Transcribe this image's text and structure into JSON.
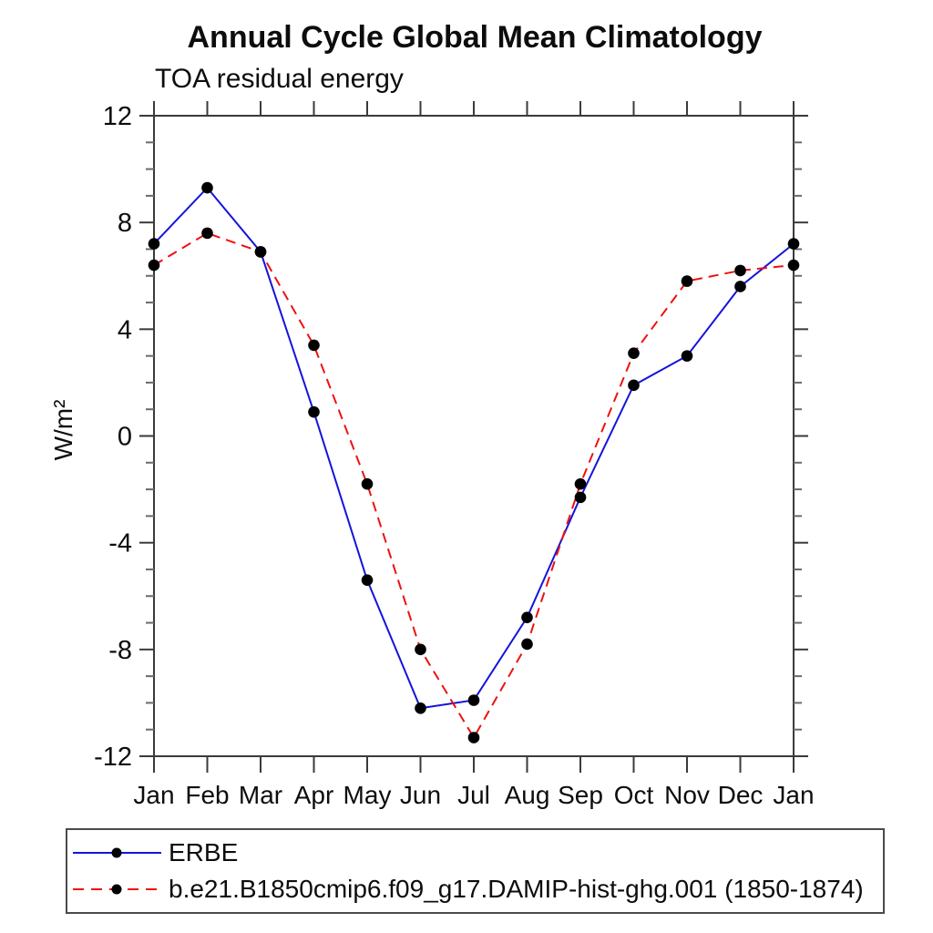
{
  "chart_data": {
    "type": "line",
    "title": "Annual Cycle Global Mean Climatology",
    "subtitle": "TOA residual energy",
    "xlabel": "",
    "ylabel": "W/m²",
    "categories": [
      "Jan",
      "Feb",
      "Mar",
      "Apr",
      "May",
      "Jun",
      "Jul",
      "Aug",
      "Sep",
      "Oct",
      "Nov",
      "Dec",
      "Jan"
    ],
    "ylim": [
      -12,
      12
    ],
    "ytick_major": [
      -12,
      -8,
      -4,
      0,
      4,
      8,
      12
    ],
    "ytick_minor_step": 1,
    "grid": false,
    "legend_position": "bottom-left",
    "axis_color": "#3a3a3a",
    "marker_color": "#000000",
    "series": [
      {
        "name": "ERBE",
        "color": "#1414dc",
        "style": "solid",
        "marker": "circle",
        "values": [
          7.2,
          9.3,
          6.9,
          0.9,
          -5.4,
          -10.2,
          -9.9,
          -6.8,
          -2.3,
          1.9,
          3.0,
          5.6,
          7.2
        ]
      },
      {
        "name": "b.e21.B1850cmip6.f09_g17.DAMIP-hist-ghg.001 (1850-1874)",
        "color": "#ee1111",
        "style": "dashed",
        "marker": "circle",
        "values": [
          6.4,
          7.6,
          6.9,
          3.4,
          -1.8,
          -8.0,
          -11.3,
          -7.8,
          -1.8,
          3.1,
          5.8,
          6.2,
          6.4
        ]
      }
    ]
  }
}
